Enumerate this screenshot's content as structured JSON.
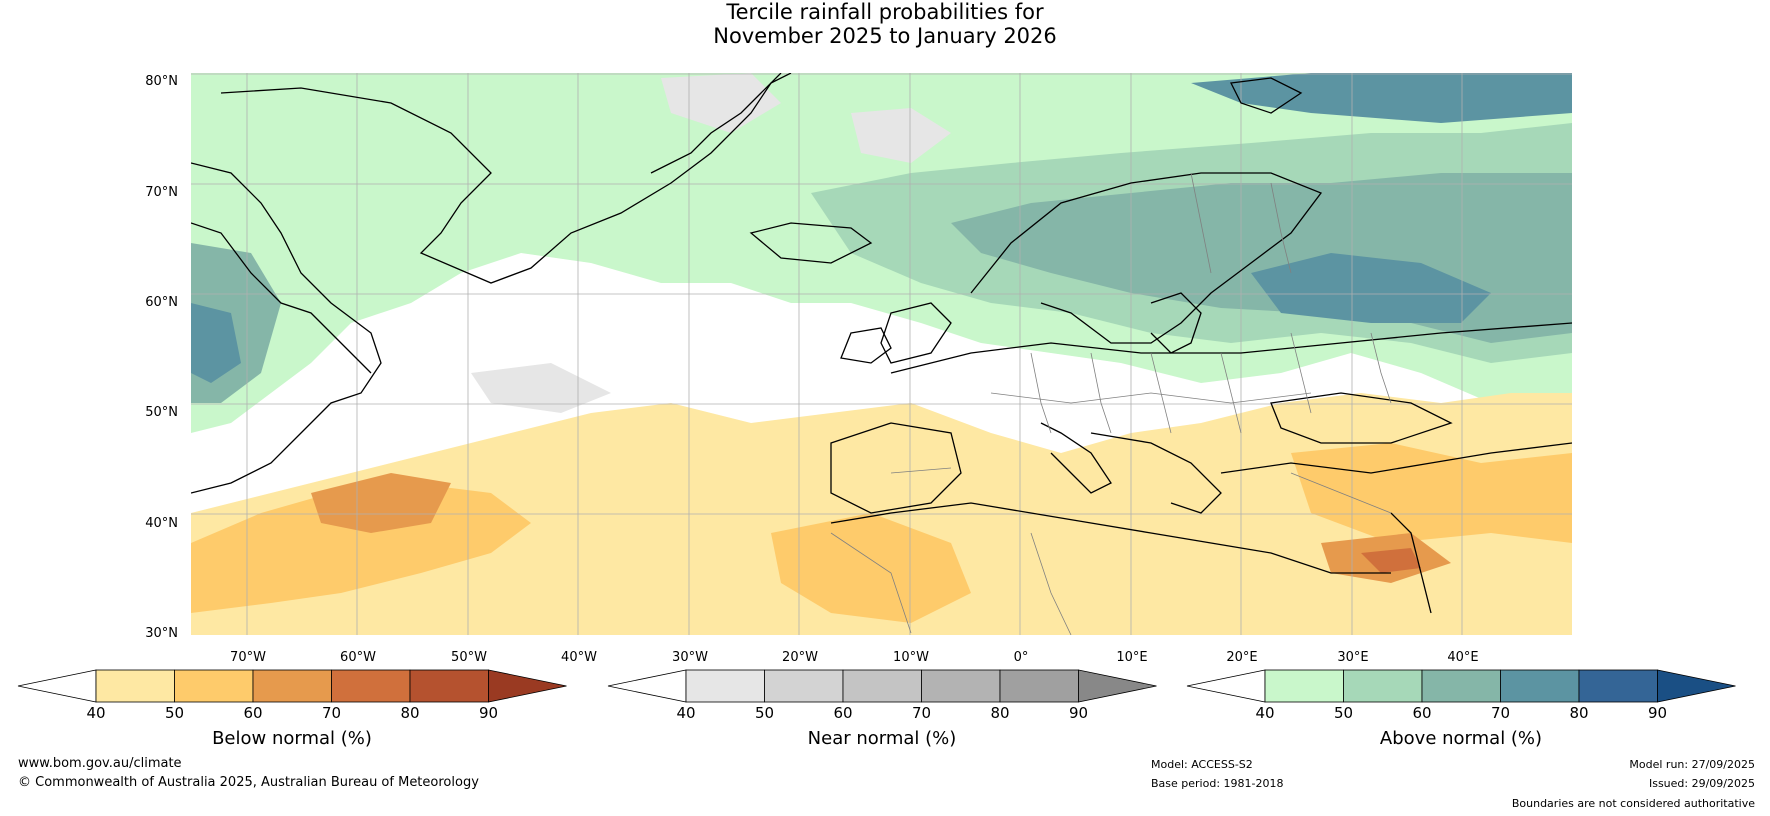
{
  "title": {
    "line1": "Tercile rainfall probabilities for",
    "line2": "November 2025 to January 2026"
  },
  "lat_labels": [
    "80°N",
    "70°N",
    "60°N",
    "50°N",
    "40°N",
    "30°N"
  ],
  "lon_labels": [
    "70°W",
    "60°W",
    "50°W",
    "40°W",
    "30°W",
    "20°W",
    "10°W",
    "0°",
    "10°E",
    "20°E",
    "30°E",
    "40°E"
  ],
  "legends": [
    {
      "name": "Below normal (%)",
      "ticks": [
        "40",
        "50",
        "60",
        "70",
        "80",
        "90"
      ],
      "colors": [
        "#ffffff",
        "#fee8a3",
        "#fecb6b",
        "#e69a4d",
        "#d0703c",
        "#b5522f",
        "#9a3a22"
      ]
    },
    {
      "name": "Near normal (%)",
      "ticks": [
        "40",
        "50",
        "60",
        "70",
        "80",
        "90"
      ],
      "colors": [
        "#ffffff",
        "#e6e6e6",
        "#d3d3d3",
        "#c4c4c4",
        "#b3b3b3",
        "#a0a0a0",
        "#888888"
      ]
    },
    {
      "name": "Above normal (%)",
      "ticks": [
        "40",
        "50",
        "60",
        "70",
        "80",
        "90"
      ],
      "colors": [
        "#ffffff",
        "#c9f7cb",
        "#a6d8b8",
        "#85b6a8",
        "#5c94a2",
        "#346596",
        "#1a4f84"
      ]
    }
  ],
  "footer": {
    "website": "www.bom.gov.au/climate",
    "copyright": "© Commonwealth of Australia 2025, Australian Bureau of Meteorology",
    "model": "Model: ACCESS-S2",
    "base_period": "Base period: 1981-2018",
    "model_run": "Model run: 27/09/2025",
    "issued": "Issued: 29/09/2025",
    "disclaimer": "Boundaries are not considered authoritative"
  }
}
